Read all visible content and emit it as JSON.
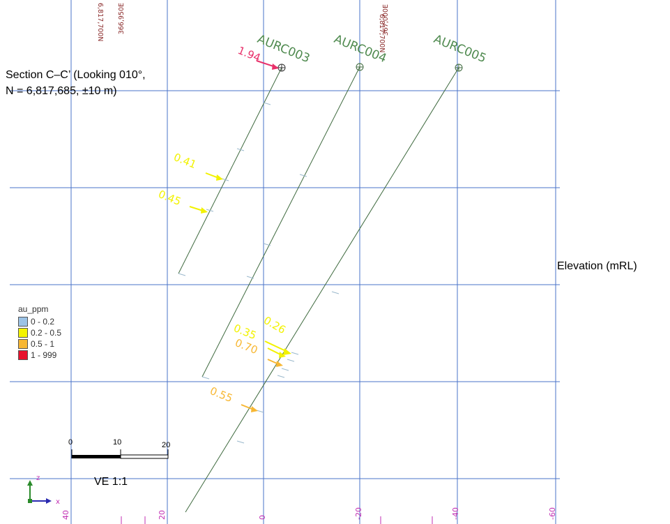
{
  "section_title": "Section C–C’ (Looking 010°, N = 6,817,685, ±10 m)",
  "elevation_label": "Elevation (mRL)",
  "ve_label": "VE 1:1",
  "legend": {
    "title": "au_ppm",
    "items": [
      {
        "label": "0  -  0.2",
        "color": "#9cc3e6"
      },
      {
        "label": "0.2  -  0.5",
        "color": "#f4f400"
      },
      {
        "label": "0.5  -  1",
        "color": "#f7b733"
      },
      {
        "label": "1  -  999",
        "color": "#e8112d"
      }
    ]
  },
  "scale_bar": {
    "ticks": [
      "0",
      "10",
      "20"
    ]
  },
  "coord_labels": [
    "6,817,700N",
    "366,950E",
    "6,817,700N",
    "367,000E"
  ],
  "bottom_axis_labels": [
    "40",
    "20",
    "0",
    "-20",
    "-40",
    "-60"
  ],
  "axis_icon": {
    "z": "z",
    "x": "x"
  },
  "drillholes": [
    {
      "name": "AURC003",
      "collar_symbol": "crosshair-circle",
      "assays": [
        {
          "value": "1.94",
          "color": "#e8306a"
        },
        {
          "value": "0.41",
          "color": "#f2f200"
        },
        {
          "value": "0.45",
          "color": "#f2f200"
        }
      ]
    },
    {
      "name": "AURC004",
      "collar_symbol": "crosshair-circle",
      "assays": [
        {
          "value": "0.26",
          "color": "#f2f200"
        },
        {
          "value": "0.35",
          "color": "#f2f200"
        },
        {
          "value": "0.70",
          "color": "#f7b733"
        },
        {
          "value": "0.55",
          "color": "#f7b733"
        }
      ]
    },
    {
      "name": "AURC005",
      "collar_symbol": "crosshair-circle",
      "assays": []
    }
  ],
  "colors": {
    "grid": "#4a73c8",
    "trace": "#3f6a3f",
    "hole_label": "#4f8a4f",
    "axis_labels": "#c22fb3",
    "coord_labels": "#8a2a2a"
  }
}
